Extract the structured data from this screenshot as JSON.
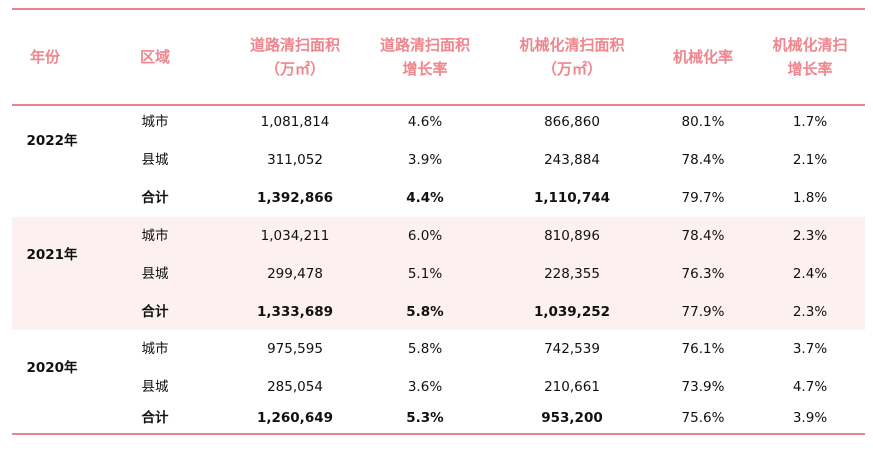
{
  "headers": {
    "year": "年份",
    "region": "区域",
    "road_area": [
      "道路清扫面积",
      "（万㎡）"
    ],
    "road_growth": [
      "道路清扫面积",
      "增长率"
    ],
    "mech_area": [
      "机械化清扫面积",
      "（万㎡）"
    ],
    "mech_rate": [
      "机械化率"
    ],
    "mech_growth": [
      "机械化清扫",
      "增长率"
    ]
  },
  "groups": [
    {
      "year": "2022年",
      "rows": [
        {
          "region": "城市",
          "road_area": "1,081,814",
          "road_growth": "4.6%",
          "mech_area": "866,860",
          "mech_rate": "80.1%",
          "mech_growth": "1.7%"
        },
        {
          "region": "县城",
          "road_area": "311,052",
          "road_growth": "3.9%",
          "mech_area": "243,884",
          "mech_rate": "78.4%",
          "mech_growth": "2.1%"
        },
        {
          "region": "合计",
          "road_area": "1,392,866",
          "road_growth": "4.4%",
          "mech_area": "1,110,744",
          "mech_rate": "79.7%",
          "mech_growth": "1.8%"
        }
      ]
    },
    {
      "year": "2021年",
      "rows": [
        {
          "region": "城市",
          "road_area": "1,034,211",
          "road_growth": "6.0%",
          "mech_area": "810,896",
          "mech_rate": "78.4%",
          "mech_growth": "2.3%"
        },
        {
          "region": "县城",
          "road_area": "299,478",
          "road_growth": "5.1%",
          "mech_area": "228,355",
          "mech_rate": "76.3%",
          "mech_growth": "2.4%"
        },
        {
          "region": "合计",
          "road_area": "1,333,689",
          "road_growth": "5.8%",
          "mech_area": "1,039,252",
          "mech_rate": "77.9%",
          "mech_growth": "2.3%"
        }
      ]
    },
    {
      "year": "2020年",
      "rows": [
        {
          "region": "城市",
          "road_area": "975,595",
          "road_growth": "5.8%",
          "mech_area": "742,539",
          "mech_rate": "76.1%",
          "mech_growth": "3.7%"
        },
        {
          "region": "县城",
          "road_area": "285,054",
          "road_growth": "3.6%",
          "mech_area": "210,661",
          "mech_rate": "73.9%",
          "mech_growth": "4.7%"
        },
        {
          "region": "合计",
          "road_area": "1,260,649",
          "road_growth": "5.3%",
          "mech_area": "953,200",
          "mech_rate": "75.6%",
          "mech_growth": "3.9%"
        }
      ]
    }
  ],
  "colors": {
    "header_text": "#f0868d",
    "rule": "#e8858a",
    "band_shade": "#fdf0f0"
  }
}
